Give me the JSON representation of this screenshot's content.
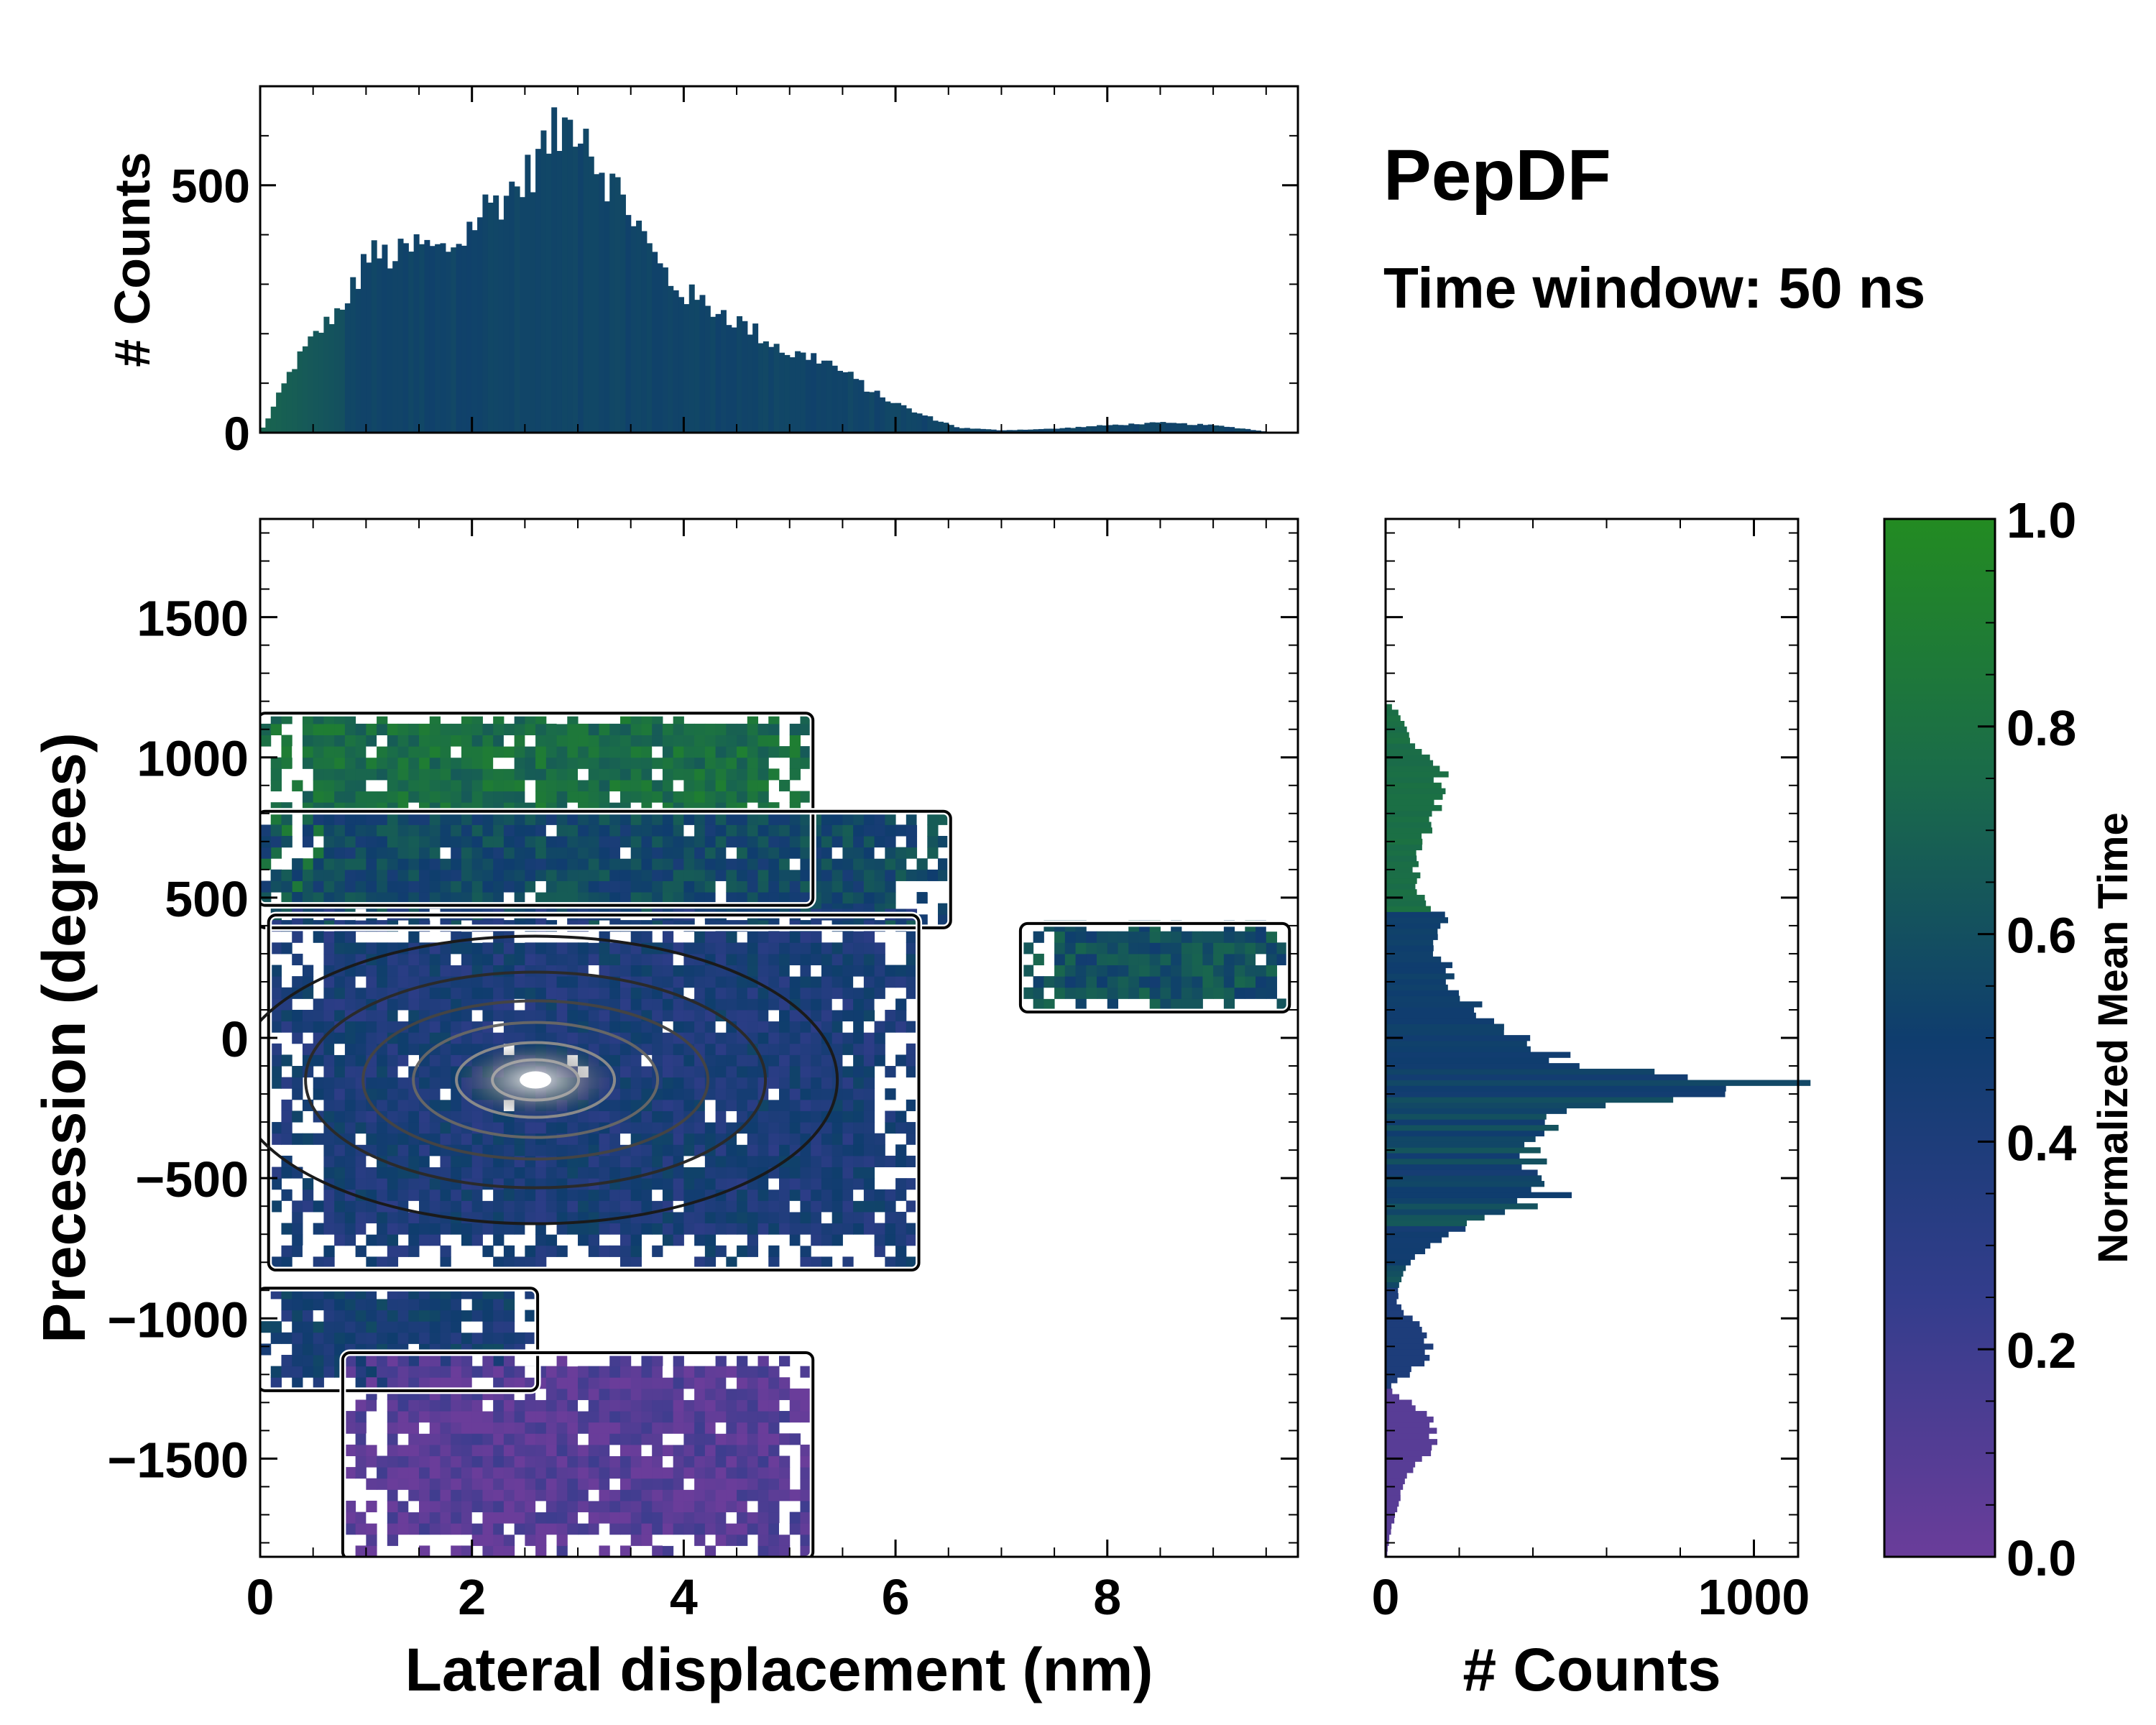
{
  "chart_data": [
    {
      "id": "top-histogram",
      "type": "bar",
      "ylabel": "# Counts",
      "xlim": [
        0,
        9.8
      ],
      "ylim": [
        0,
        700
      ],
      "yticks": [
        0,
        500
      ],
      "x_profile": [
        [
          0.0,
          0
        ],
        [
          0.1,
          40
        ],
        [
          0.3,
          130
        ],
        [
          0.5,
          190
        ],
        [
          0.7,
          240
        ],
        [
          0.9,
          300
        ],
        [
          1.0,
          360
        ],
        [
          1.3,
          355
        ],
        [
          1.5,
          380
        ],
        [
          1.7,
          365
        ],
        [
          1.9,
          390
        ],
        [
          2.1,
          450
        ],
        [
          2.3,
          480
        ],
        [
          2.5,
          510
        ],
        [
          2.7,
          585
        ],
        [
          2.9,
          620
        ],
        [
          3.05,
          640
        ],
        [
          3.15,
          560
        ],
        [
          3.3,
          510
        ],
        [
          3.5,
          450
        ],
        [
          3.7,
          360
        ],
        [
          3.9,
          300
        ],
        [
          4.1,
          270
        ],
        [
          4.4,
          240
        ],
        [
          4.7,
          200
        ],
        [
          5.0,
          160
        ],
        [
          5.3,
          150
        ],
        [
          5.6,
          110
        ],
        [
          5.8,
          80
        ],
        [
          6.0,
          60
        ],
        [
          6.2,
          40
        ],
        [
          6.4,
          25
        ],
        [
          6.6,
          10
        ],
        [
          7.0,
          5
        ],
        [
          7.5,
          8
        ],
        [
          8.0,
          15
        ],
        [
          8.5,
          20
        ],
        [
          9.0,
          15
        ],
        [
          9.3,
          8
        ],
        [
          9.5,
          2
        ],
        [
          9.8,
          0
        ]
      ]
    },
    {
      "id": "main-heatmap",
      "type": "heatmap",
      "xlabel": "Lateral displacement (nm)",
      "ylabel": "Precession (degrees)",
      "xlim": [
        0,
        9.8
      ],
      "ylim": [
        -1850,
        1850
      ],
      "xticks": [
        0,
        2,
        4,
        6,
        8
      ],
      "yticks": [
        -1500,
        -1000,
        -500,
        0,
        500,
        1000,
        1500
      ],
      "regions": [
        {
          "name": "upper-lobe",
          "x": [
            0.0,
            5.2
          ],
          "y": [
            480,
            1150
          ],
          "color_value": 0.78
        },
        {
          "name": "upper-mid",
          "x": [
            0.0,
            6.5
          ],
          "y": [
            400,
            800
          ],
          "color_value": 0.55
        },
        {
          "name": "central-band",
          "x": [
            0.1,
            6.2
          ],
          "y": [
            -820,
            430
          ],
          "color_value": 0.42
        },
        {
          "name": "right-tail",
          "x": [
            7.2,
            9.7
          ],
          "y": [
            100,
            400
          ],
          "color_value": 0.6
        },
        {
          "name": "low-band",
          "x": [
            0.0,
            2.6
          ],
          "y": [
            -1250,
            -900
          ],
          "color_value": 0.45
        },
        {
          "name": "bottom-lobe",
          "x": [
            0.8,
            5.2
          ],
          "y": [
            -1850,
            -1130
          ],
          "color_value": 0.08
        }
      ],
      "density_peak": {
        "x": 2.6,
        "y": -150
      }
    },
    {
      "id": "right-histogram",
      "type": "bar",
      "orientation": "horizontal",
      "xlabel": "# Counts",
      "xlim": [
        0,
        1120
      ],
      "xticks": [
        0,
        1000
      ],
      "y_profile": [
        [
          1200,
          0
        ],
        [
          1150,
          40
        ],
        [
          1050,
          80
        ],
        [
          950,
          150
        ],
        [
          850,
          140
        ],
        [
          750,
          120
        ],
        [
          650,
          90
        ],
        [
          550,
          80
        ],
        [
          450,
          140
        ],
        [
          400,
          170
        ],
        [
          330,
          140
        ],
        [
          250,
          170
        ],
        [
          150,
          210
        ],
        [
          80,
          280
        ],
        [
          20,
          330
        ],
        [
          -30,
          400
        ],
        [
          -80,
          520
        ],
        [
          -130,
          720
        ],
        [
          -160,
          1030
        ],
        [
          -200,
          850
        ],
        [
          -240,
          600
        ],
        [
          -300,
          450
        ],
        [
          -400,
          440
        ],
        [
          -500,
          380
        ],
        [
          -560,
          460
        ],
        [
          -620,
          310
        ],
        [
          -700,
          180
        ],
        [
          -780,
          80
        ],
        [
          -850,
          40
        ],
        [
          -950,
          30
        ],
        [
          -1050,
          120
        ],
        [
          -1150,
          110
        ],
        [
          -1250,
          5
        ],
        [
          -1350,
          120
        ],
        [
          -1450,
          140
        ],
        [
          -1550,
          60
        ],
        [
          -1650,
          40
        ],
        [
          -1750,
          15
        ],
        [
          -1830,
          5
        ]
      ]
    },
    {
      "id": "colorbar",
      "type": "colorbar",
      "label": "Normalized Mean Time",
      "range": [
        0.0,
        1.0
      ],
      "ticks": [
        "0.0",
        "0.2",
        "0.4",
        "0.6",
        "0.8",
        "1.0"
      ],
      "stops": [
        {
          "value": 0.0,
          "color": "#6a3d9a"
        },
        {
          "value": 0.25,
          "color": "#333d8c"
        },
        {
          "value": 0.5,
          "color": "#0f3d6e"
        },
        {
          "value": 0.75,
          "color": "#1a6b4a"
        },
        {
          "value": 1.0,
          "color": "#238b22"
        }
      ]
    }
  ],
  "annotations": {
    "title": "PepDF",
    "subtitle": "Time window: 50 ns"
  }
}
